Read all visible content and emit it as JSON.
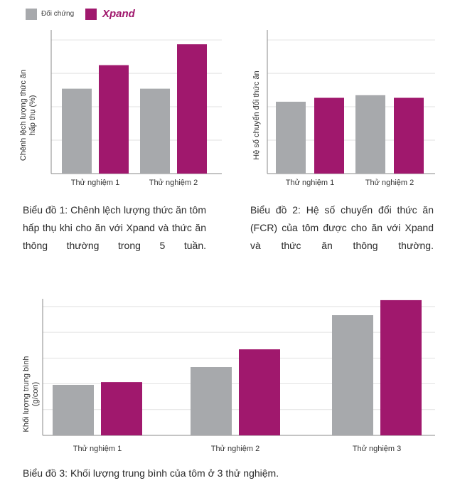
{
  "legend": {
    "control_label": "Đối chứng",
    "xpand_label": "Xpand"
  },
  "colors": {
    "control": "#a7a9ac",
    "xpand": "#a0186d",
    "grid": "#e2e2e2",
    "axis": "#8a8a8a",
    "text": "#333333"
  },
  "chart_data": [
    {
      "type": "bar",
      "title": "",
      "xlabel": "",
      "ylabel": "Chênh lệch lượng thức ăn hấp thụ (%)",
      "ylim": [
        0,
        110
      ],
      "categories": [
        "Thử nghiệm 1",
        "Thử nghiệm 2"
      ],
      "series": [
        {
          "name": "Đối chứng",
          "values": [
            65,
            65
          ]
        },
        {
          "name": "Xpand",
          "values": [
            83,
            99
          ]
        }
      ],
      "caption": "Biểu đồ 1: Chênh lệch lượng thức ăn tôm hấp thụ khi cho ăn với Xpand và thức ăn thông thường trong 5 tuần."
    },
    {
      "type": "bar",
      "title": "",
      "xlabel": "",
      "ylabel": "Hệ số chuyển đổi thức ăn",
      "ylim": [
        0,
        110
      ],
      "categories": [
        "Thử nghiệm 1",
        "Thử nghiệm 2"
      ],
      "series": [
        {
          "name": "Đối chứng",
          "values": [
            55,
            60
          ]
        },
        {
          "name": "Xpand",
          "values": [
            58,
            58
          ]
        }
      ],
      "caption": "Biểu đồ 2: Hệ số chuyển đổi thức ăn (FCR) của tôm được cho ăn với Xpand và thức ăn thông thường."
    },
    {
      "type": "bar",
      "title": "",
      "xlabel": "",
      "ylabel": "Khối lượng trung bình (g/con)",
      "ylim": [
        0,
        100
      ],
      "categories": [
        "Thử nghiệm 1",
        "Thử nghiệm 2",
        "Thử nghiệm 3"
      ],
      "series": [
        {
          "name": "Đối chứng",
          "values": [
            37,
            50,
            88
          ]
        },
        {
          "name": "Xpand",
          "values": [
            39,
            63,
            99
          ]
        }
      ],
      "caption": "Biểu đồ 3: Khối lượng trung bình của tôm ở 3 thử nghiệm."
    }
  ]
}
